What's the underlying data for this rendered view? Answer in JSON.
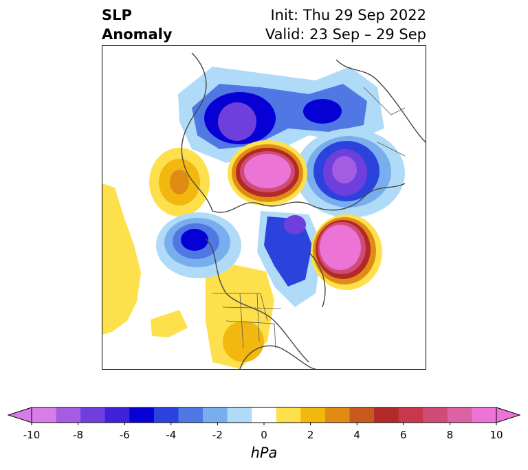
{
  "title": {
    "line1": "SLP",
    "line2": "Anomaly",
    "init": "Init: Thu 29 Sep 2022",
    "valid": "Valid: 23 Sep – 29 Sep"
  },
  "colorbar": {
    "unit": "hPa",
    "min": -10,
    "max": 10,
    "ticks": [
      "-10",
      "-8",
      "-6",
      "-4",
      "-2",
      "0",
      "2",
      "4",
      "6",
      "8",
      "10"
    ],
    "colors": [
      "#d77ce9",
      "#a35ce2",
      "#6e3fdc",
      "#3e21d8",
      "#0600d4",
      "#2b43dc",
      "#4f78e4",
      "#79aeee",
      "#b0dbf8",
      "#ffffff",
      "#fde04c",
      "#f2b80f",
      "#e08c14",
      "#c9591e",
      "#b22a27",
      "#c7384c",
      "#d04c77",
      "#dd62a3",
      "#eb74d6"
    ],
    "extend": "both"
  },
  "map": {
    "projection": "north polar stereographic",
    "features": [
      "coastlines",
      "country borders",
      "US state borders"
    ]
  }
}
